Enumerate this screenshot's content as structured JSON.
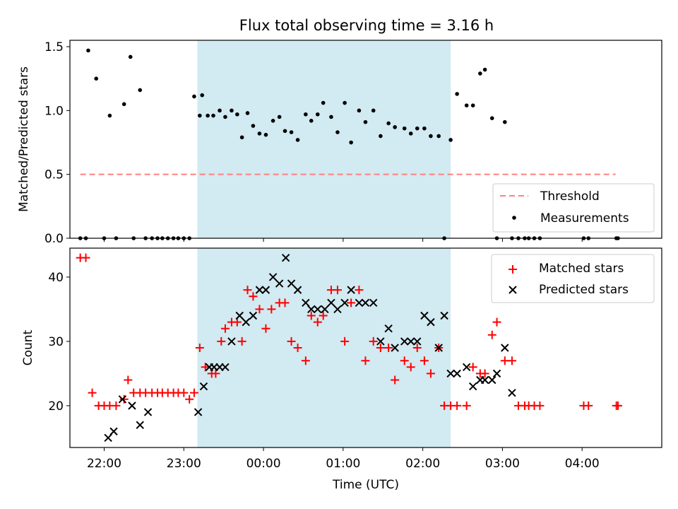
{
  "figure_title": "Flux total observing time = 3.16 h",
  "colors": {
    "shade": "#add8e6",
    "threshold": "#ff8080",
    "matched": "#ff0000",
    "predicted": "#000000",
    "measurement": "#000000"
  },
  "chart_data": [
    {
      "type": "scatter",
      "panel": "top",
      "title": "Flux total observing time = 3.16 h",
      "xlabel": "",
      "ylabel": "Matched/Predicted stars",
      "x_unit": "hours since 00:00 UTC",
      "xlim": [
        -2.43,
        5.0
      ],
      "ylim": [
        0.0,
        1.55
      ],
      "yticks": [
        0.0,
        0.5,
        1.0,
        1.5
      ],
      "ytick_labels": [
        "0.0",
        "0.5",
        "1.0",
        "1.5"
      ],
      "shaded_region": [
        -0.83,
        2.35
      ],
      "threshold": {
        "name": "Threshold",
        "value": 0.5,
        "x": [
          -2.3,
          4.42
        ]
      },
      "legend": {
        "placement": "lower right",
        "entries": [
          "Threshold",
          "Measurements"
        ]
      },
      "series": [
        {
          "name": "Measurements",
          "x": [
            -2.3,
            -2.23,
            -2.2,
            -2.1,
            -2.0,
            -1.93,
            -1.85,
            -1.75,
            -1.67,
            -1.63,
            -1.55,
            -1.48,
            -1.4,
            -1.33,
            -1.27,
            -1.2,
            -1.13,
            -1.07,
            -1.0,
            -0.93,
            -0.87,
            -0.8,
            -0.77,
            -0.7,
            -0.63,
            -0.55,
            -0.48,
            -0.4,
            -0.33,
            -0.27,
            -0.2,
            -0.13,
            -0.05,
            0.03,
            0.12,
            0.2,
            0.27,
            0.35,
            0.43,
            0.53,
            0.6,
            0.68,
            0.75,
            0.85,
            0.93,
            1.02,
            1.1,
            1.2,
            1.28,
            1.38,
            1.47,
            1.57,
            1.65,
            1.77,
            1.85,
            1.93,
            2.02,
            2.1,
            2.2,
            2.27,
            2.35,
            2.43,
            2.55,
            2.63,
            2.72,
            2.78,
            2.87,
            2.93,
            3.03,
            3.12,
            3.2,
            3.28,
            3.33,
            3.4,
            3.47,
            4.02,
            4.08,
            4.43,
            4.45
          ],
          "y": [
            0,
            0,
            1.47,
            1.25,
            0,
            0.96,
            0,
            1.05,
            1.42,
            0,
            1.16,
            0,
            0,
            0,
            0,
            0,
            0,
            0,
            0,
            0,
            1.11,
            0.96,
            1.12,
            0.96,
            0.96,
            1.0,
            0.95,
            1.0,
            0.97,
            0.79,
            0.98,
            0.88,
            0.82,
            0.81,
            0.92,
            0.95,
            0.84,
            0.83,
            0.77,
            0.97,
            0.92,
            0.97,
            1.06,
            0.95,
            0.83,
            1.06,
            0.75,
            1.0,
            0.91,
            1.0,
            0.8,
            0.9,
            0.87,
            0.86,
            0.82,
            0.86,
            0.86,
            0.8,
            0.8,
            0.0,
            0.77,
            1.13,
            1.04,
            1.04,
            1.29,
            1.32,
            0.94,
            0.0,
            0.91,
            0,
            0,
            0,
            0,
            0,
            0,
            0,
            0,
            0,
            0
          ]
        }
      ]
    },
    {
      "type": "scatter",
      "panel": "bottom",
      "title": "",
      "xlabel": "Time (UTC)",
      "ylabel": "Count",
      "x_unit": "hours since 00:00 UTC",
      "xlim": [
        -2.43,
        5.0
      ],
      "ylim": [
        13.5,
        44.5
      ],
      "yticks": [
        20,
        30,
        40
      ],
      "ytick_labels": [
        "20",
        "30",
        "40"
      ],
      "xticks": [
        -2,
        -1,
        0,
        1,
        2,
        3,
        4
      ],
      "xtick_labels": [
        "22:00",
        "23:00",
        "00:00",
        "01:00",
        "02:00",
        "03:00",
        "04:00"
      ],
      "shaded_region": [
        -0.83,
        2.35
      ],
      "legend": {
        "placement": "upper right",
        "entries": [
          "Matched stars",
          "Predicted stars"
        ]
      },
      "series": [
        {
          "name": "Matched stars",
          "x": [
            -2.3,
            -2.23,
            -2.15,
            -2.07,
            -2.0,
            -1.93,
            -1.85,
            -1.75,
            -1.7,
            -1.63,
            -1.55,
            -1.48,
            -1.4,
            -1.33,
            -1.27,
            -1.2,
            -1.13,
            -1.07,
            -1.0,
            -0.93,
            -0.87,
            -0.8,
            -0.73,
            -0.65,
            -0.6,
            -0.53,
            -0.48,
            -0.4,
            -0.33,
            -0.27,
            -0.2,
            -0.13,
            -0.05,
            0.03,
            0.1,
            0.2,
            0.27,
            0.35,
            0.43,
            0.53,
            0.6,
            0.68,
            0.75,
            0.85,
            0.93,
            1.02,
            1.1,
            1.2,
            1.28,
            1.38,
            1.47,
            1.57,
            1.65,
            1.77,
            1.85,
            1.93,
            2.02,
            2.1,
            2.2,
            2.27,
            2.35,
            2.43,
            2.55,
            2.63,
            2.72,
            2.78,
            2.87,
            2.93,
            3.03,
            3.12,
            3.2,
            3.28,
            3.33,
            3.4,
            3.47,
            4.02,
            4.08,
            4.43,
            4.45
          ],
          "y": [
            43,
            43,
            22,
            20,
            20,
            20,
            20,
            21,
            24,
            22,
            22,
            22,
            22,
            22,
            22,
            22,
            22,
            22,
            22,
            21,
            22,
            29,
            26,
            25,
            25,
            30,
            32,
            33,
            33,
            30,
            38,
            37,
            35,
            32,
            35,
            36,
            36,
            30,
            29,
            27,
            34,
            33,
            34,
            38,
            38,
            30,
            36,
            38,
            27,
            30,
            29,
            29,
            24,
            27,
            26,
            29,
            27,
            25,
            29,
            20,
            20,
            20,
            20,
            26,
            25,
            25,
            31,
            33,
            27,
            27,
            20,
            20,
            20,
            20,
            20,
            20,
            20,
            20,
            20
          ]
        },
        {
          "name": "Predicted stars",
          "x": [
            -1.95,
            -1.88,
            -1.77,
            -1.65,
            -1.55,
            -1.45,
            -0.82,
            -0.75,
            -0.68,
            -0.62,
            -0.55,
            -0.48,
            -0.4,
            -0.3,
            -0.22,
            -0.13,
            -0.05,
            0.03,
            0.12,
            0.2,
            0.28,
            0.35,
            0.43,
            0.53,
            0.6,
            0.68,
            0.77,
            0.85,
            0.93,
            1.02,
            1.1,
            1.2,
            1.28,
            1.38,
            1.47,
            1.57,
            1.65,
            1.77,
            1.85,
            1.93,
            2.02,
            2.1,
            2.2,
            2.27,
            2.35,
            2.43,
            2.55,
            2.63,
            2.72,
            2.78,
            2.87,
            2.93,
            3.03,
            3.12
          ],
          "y": [
            15,
            16,
            21,
            20,
            17,
            19,
            19,
            23,
            26,
            26,
            26,
            26,
            30,
            34,
            33,
            34,
            38,
            38,
            40,
            39,
            43,
            39,
            38,
            36,
            35,
            35,
            35,
            36,
            35,
            36,
            38,
            36,
            36,
            36,
            30,
            32,
            29,
            30,
            30,
            30,
            34,
            33,
            29,
            34,
            25,
            25,
            26,
            23,
            24,
            24,
            24,
            25,
            29,
            22
          ]
        }
      ]
    }
  ]
}
